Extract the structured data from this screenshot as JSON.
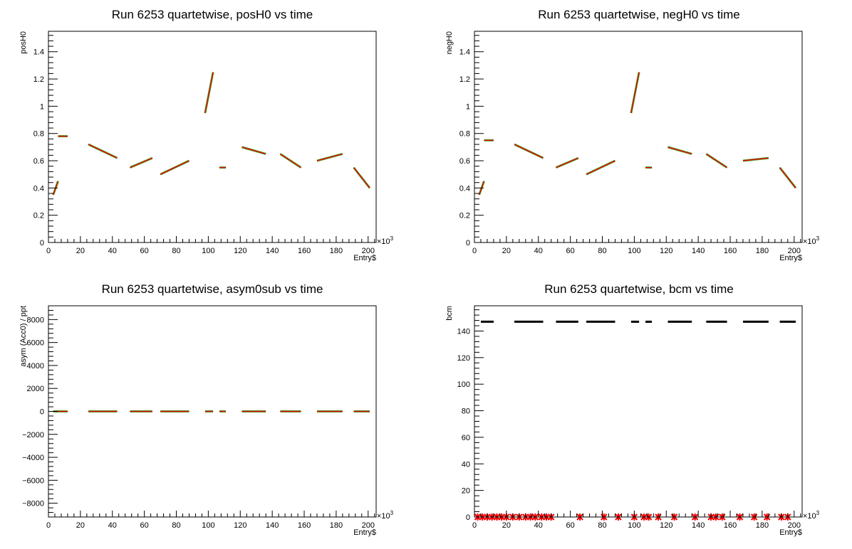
{
  "colors": {
    "green": "#33bb33",
    "red": "#ee0000",
    "black": "#000000"
  },
  "chart_data": [
    {
      "type": "scatter",
      "title": "Run 6253 quartetwise, posH0 vs time",
      "xlabel": "Entry$",
      "ylabel": "posH0",
      "x_multiplier": "×10",
      "x_multiplier_exp": "3",
      "xlim": [
        0,
        205
      ],
      "ylim": [
        0,
        1.55
      ],
      "xticks": [
        0,
        20,
        40,
        60,
        80,
        100,
        120,
        140,
        160,
        180,
        200
      ],
      "yticks": [
        0,
        0.2,
        0.4,
        0.6,
        0.8,
        1,
        1.2,
        1.4
      ],
      "ytick_labels": [
        "0",
        "0.2",
        "0.4",
        "0.6",
        "0.8",
        "1",
        "1.2",
        "1.4"
      ],
      "series": [
        {
          "color": "#33bb33",
          "segments": [
            {
              "x": [
                3,
                6
              ],
              "y": [
                0.35,
                0.45
              ]
            },
            {
              "x": [
                6,
                12
              ],
              "y": [
                0.78,
                0.78
              ]
            },
            {
              "x": [
                25,
                43
              ],
              "y": [
                0.72,
                0.62
              ]
            },
            {
              "x": [
                51,
                65
              ],
              "y": [
                0.55,
                0.62
              ]
            },
            {
              "x": [
                70,
                88
              ],
              "y": [
                0.5,
                0.6
              ]
            },
            {
              "x": [
                98,
                103
              ],
              "y": [
                0.95,
                1.25
              ]
            },
            {
              "x": [
                107,
                111
              ],
              "y": [
                0.55,
                0.55
              ]
            },
            {
              "x": [
                121,
                136
              ],
              "y": [
                0.7,
                0.65
              ]
            },
            {
              "x": [
                145,
                158
              ],
              "y": [
                0.65,
                0.55
              ]
            },
            {
              "x": [
                168,
                184
              ],
              "y": [
                0.6,
                0.65
              ]
            },
            {
              "x": [
                191,
                201
              ],
              "y": [
                0.55,
                0.4
              ]
            }
          ]
        },
        {
          "color": "#ee0000",
          "segments": [
            {
              "x": [
                3,
                6
              ],
              "y": [
                0.35,
                0.45
              ]
            },
            {
              "x": [
                6,
                12
              ],
              "y": [
                0.78,
                0.78
              ]
            },
            {
              "x": [
                25,
                43
              ],
              "y": [
                0.72,
                0.62
              ]
            },
            {
              "x": [
                51,
                65
              ],
              "y": [
                0.55,
                0.62
              ]
            },
            {
              "x": [
                70,
                88
              ],
              "y": [
                0.5,
                0.6
              ]
            },
            {
              "x": [
                98,
                103
              ],
              "y": [
                0.95,
                1.25
              ]
            },
            {
              "x": [
                107,
                111
              ],
              "y": [
                0.55,
                0.55
              ]
            },
            {
              "x": [
                121,
                136
              ],
              "y": [
                0.7,
                0.65
              ]
            },
            {
              "x": [
                145,
                158
              ],
              "y": [
                0.65,
                0.55
              ]
            },
            {
              "x": [
                168,
                184
              ],
              "y": [
                0.6,
                0.65
              ]
            },
            {
              "x": [
                191,
                201
              ],
              "y": [
                0.55,
                0.4
              ]
            }
          ]
        }
      ]
    },
    {
      "type": "scatter",
      "title": "Run 6253 quartetwise, negH0 vs time",
      "xlabel": "Entry$",
      "ylabel": "negH0",
      "x_multiplier": "×10",
      "x_multiplier_exp": "3",
      "xlim": [
        0,
        205
      ],
      "ylim": [
        0,
        1.55
      ],
      "xticks": [
        0,
        20,
        40,
        60,
        80,
        100,
        120,
        140,
        160,
        180,
        200
      ],
      "yticks": [
        0,
        0.2,
        0.4,
        0.6,
        0.8,
        1,
        1.2,
        1.4
      ],
      "ytick_labels": [
        "0",
        "0.2",
        "0.4",
        "0.6",
        "0.8",
        "1",
        "1.2",
        "1.4"
      ],
      "series": [
        {
          "color": "#33bb33",
          "segments": [
            {
              "x": [
                3,
                6
              ],
              "y": [
                0.35,
                0.45
              ]
            },
            {
              "x": [
                6,
                12
              ],
              "y": [
                0.75,
                0.75
              ]
            },
            {
              "x": [
                25,
                43
              ],
              "y": [
                0.72,
                0.62
              ]
            },
            {
              "x": [
                51,
                65
              ],
              "y": [
                0.55,
                0.62
              ]
            },
            {
              "x": [
                70,
                88
              ],
              "y": [
                0.5,
                0.6
              ]
            },
            {
              "x": [
                98,
                103
              ],
              "y": [
                0.95,
                1.25
              ]
            },
            {
              "x": [
                107,
                111
              ],
              "y": [
                0.55,
                0.55
              ]
            },
            {
              "x": [
                121,
                136
              ],
              "y": [
                0.7,
                0.65
              ]
            },
            {
              "x": [
                145,
                158
              ],
              "y": [
                0.65,
                0.55
              ]
            },
            {
              "x": [
                168,
                184
              ],
              "y": [
                0.6,
                0.62
              ]
            },
            {
              "x": [
                191,
                201
              ],
              "y": [
                0.55,
                0.4
              ]
            }
          ]
        },
        {
          "color": "#ee0000",
          "segments": [
            {
              "x": [
                3,
                6
              ],
              "y": [
                0.35,
                0.45
              ]
            },
            {
              "x": [
                6,
                12
              ],
              "y": [
                0.75,
                0.75
              ]
            },
            {
              "x": [
                25,
                43
              ],
              "y": [
                0.72,
                0.62
              ]
            },
            {
              "x": [
                51,
                65
              ],
              "y": [
                0.55,
                0.62
              ]
            },
            {
              "x": [
                70,
                88
              ],
              "y": [
                0.5,
                0.6
              ]
            },
            {
              "x": [
                98,
                103
              ],
              "y": [
                0.95,
                1.25
              ]
            },
            {
              "x": [
                107,
                111
              ],
              "y": [
                0.55,
                0.55
              ]
            },
            {
              "x": [
                121,
                136
              ],
              "y": [
                0.7,
                0.65
              ]
            },
            {
              "x": [
                145,
                158
              ],
              "y": [
                0.65,
                0.55
              ]
            },
            {
              "x": [
                168,
                184
              ],
              "y": [
                0.6,
                0.62
              ]
            },
            {
              "x": [
                191,
                201
              ],
              "y": [
                0.55,
                0.4
              ]
            }
          ]
        }
      ]
    },
    {
      "type": "scatter",
      "title": "Run 6253 quartetwise, asym0sub vs time",
      "xlabel": "Entry$",
      "ylabel": "asym (Acc0) / ppt",
      "x_multiplier": "×10",
      "x_multiplier_exp": "3",
      "xlim": [
        0,
        205
      ],
      "ylim": [
        -9200,
        9200
      ],
      "xticks": [
        0,
        20,
        40,
        60,
        80,
        100,
        120,
        140,
        160,
        180,
        200
      ],
      "yticks": [
        -8000,
        -6000,
        -4000,
        -2000,
        0,
        2000,
        4000,
        6000,
        8000
      ],
      "ytick_labels": [
        "−8000",
        "−6000",
        "−4000",
        "−2000",
        "0",
        "2000",
        "4000",
        "6000",
        "8000"
      ],
      "series": [
        {
          "color": "#33bb33",
          "segments": [
            {
              "x": [
                3,
                12
              ],
              "y": [
                0,
                0
              ]
            },
            {
              "x": [
                25,
                43
              ],
              "y": [
                0,
                0
              ]
            },
            {
              "x": [
                51,
                65
              ],
              "y": [
                0,
                0
              ]
            },
            {
              "x": [
                70,
                88
              ],
              "y": [
                0,
                0
              ]
            },
            {
              "x": [
                98,
                103
              ],
              "y": [
                0,
                0
              ]
            },
            {
              "x": [
                107,
                111
              ],
              "y": [
                0,
                0
              ]
            },
            {
              "x": [
                121,
                136
              ],
              "y": [
                0,
                0
              ]
            },
            {
              "x": [
                145,
                158
              ],
              "y": [
                0,
                0
              ]
            },
            {
              "x": [
                168,
                184
              ],
              "y": [
                0,
                0
              ]
            },
            {
              "x": [
                191,
                201
              ],
              "y": [
                0,
                0
              ]
            }
          ]
        },
        {
          "color": "#ee0000",
          "segments": [
            {
              "x": [
                3,
                12
              ],
              "y": [
                0,
                0
              ]
            },
            {
              "x": [
                25,
                43
              ],
              "y": [
                0,
                0
              ]
            },
            {
              "x": [
                51,
                65
              ],
              "y": [
                0,
                0
              ]
            },
            {
              "x": [
                70,
                88
              ],
              "y": [
                0,
                0
              ]
            },
            {
              "x": [
                98,
                103
              ],
              "y": [
                0,
                0
              ]
            },
            {
              "x": [
                107,
                111
              ],
              "y": [
                0,
                0
              ]
            },
            {
              "x": [
                121,
                136
              ],
              "y": [
                0,
                0
              ]
            },
            {
              "x": [
                145,
                158
              ],
              "y": [
                0,
                0
              ]
            },
            {
              "x": [
                168,
                184
              ],
              "y": [
                0,
                0
              ]
            },
            {
              "x": [
                191,
                201
              ],
              "y": [
                0,
                0
              ]
            }
          ]
        }
      ]
    },
    {
      "type": "scatter",
      "title": "Run 6253 quartetwise, bcm vs time",
      "xlabel": "Entry$",
      "ylabel": "bcm",
      "x_multiplier": "×10",
      "x_multiplier_exp": "3",
      "xlim": [
        0,
        205
      ],
      "ylim": [
        0,
        159
      ],
      "xticks": [
        0,
        20,
        40,
        60,
        80,
        100,
        120,
        140,
        160,
        180,
        200
      ],
      "yticks": [
        0,
        20,
        40,
        60,
        80,
        100,
        120,
        140
      ],
      "ytick_labels": [
        "0",
        "20",
        "40",
        "60",
        "80",
        "100",
        "120",
        "140"
      ],
      "series": [
        {
          "color": "#000000",
          "segments": [
            {
              "x": [
                4,
                12
              ],
              "y": [
                147,
                147
              ]
            },
            {
              "x": [
                25,
                43
              ],
              "y": [
                147,
                147
              ]
            },
            {
              "x": [
                51,
                65
              ],
              "y": [
                147,
                147
              ]
            },
            {
              "x": [
                70,
                88
              ],
              "y": [
                147,
                147
              ]
            },
            {
              "x": [
                98,
                103
              ],
              "y": [
                147,
                147
              ]
            },
            {
              "x": [
                107,
                111
              ],
              "y": [
                147,
                147
              ]
            },
            {
              "x": [
                121,
                136
              ],
              "y": [
                147,
                147
              ]
            },
            {
              "x": [
                145,
                158
              ],
              "y": [
                147,
                147
              ]
            },
            {
              "x": [
                168,
                184
              ],
              "y": [
                147,
                147
              ]
            },
            {
              "x": [
                191,
                201
              ],
              "y": [
                147,
                147
              ]
            }
          ]
        },
        {
          "color": "#ee0000",
          "type": "markers",
          "x": [
            2,
            5,
            8,
            11,
            14,
            17,
            20,
            24,
            28,
            32,
            35,
            38,
            42,
            45,
            48,
            66,
            81,
            90,
            100,
            106,
            109,
            115,
            125,
            138,
            148,
            151,
            155,
            166,
            175,
            183,
            192,
            196
          ],
          "y": [
            0,
            0,
            0,
            0,
            0,
            0,
            0,
            0,
            0,
            0,
            0,
            0,
            0,
            0,
            0,
            0,
            0,
            0,
            0,
            0,
            0,
            0,
            0,
            0,
            0,
            0,
            0,
            0,
            0,
            0,
            0,
            0
          ]
        }
      ]
    }
  ]
}
